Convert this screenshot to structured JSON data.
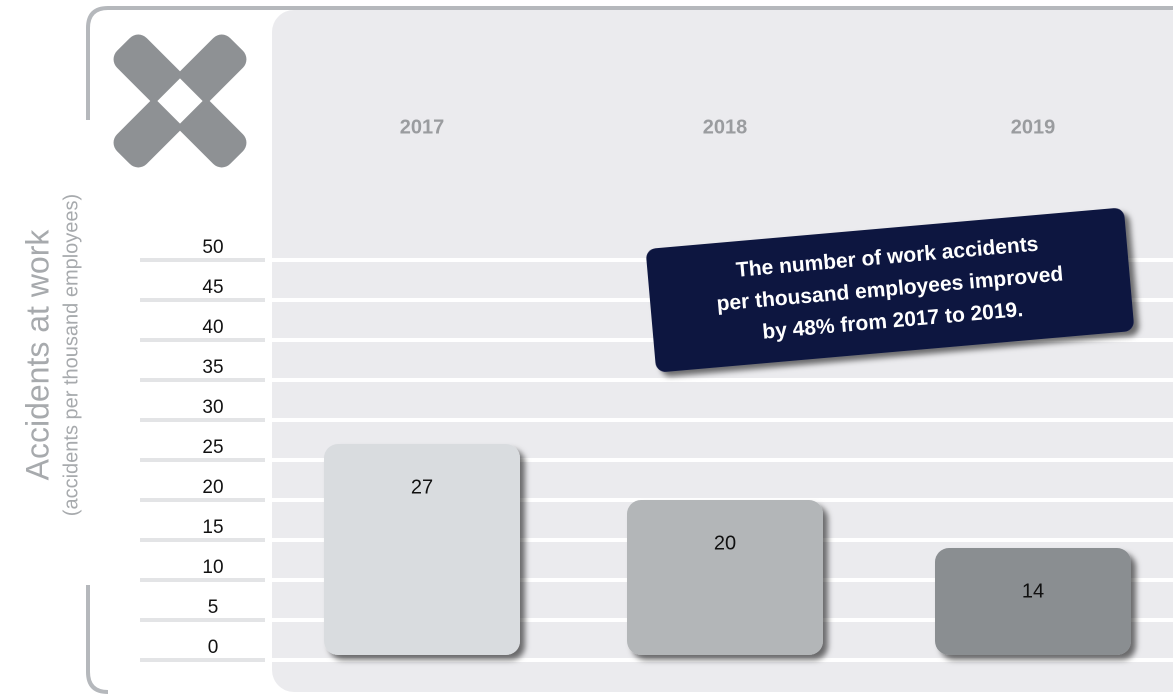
{
  "chart_data": {
    "type": "bar",
    "y_axis_label": "Accidents at work",
    "y_axis_sublabel": "(accidents per thousand employees)",
    "categories": [
      "2017",
      "2018",
      "2019"
    ],
    "values": [
      27,
      20,
      14
    ],
    "colors": [
      "#d9dcdf",
      "#b3b6b8",
      "#8a8e91"
    ],
    "ylim": [
      0,
      50
    ],
    "yticks": [
      0,
      5,
      10,
      15,
      20,
      25,
      30,
      35,
      40,
      45,
      50
    ],
    "grid": true,
    "annotation": [
      "The number of work accidents",
      "per thousand employees improved",
      "by 48% from 2017 to 2019."
    ]
  }
}
